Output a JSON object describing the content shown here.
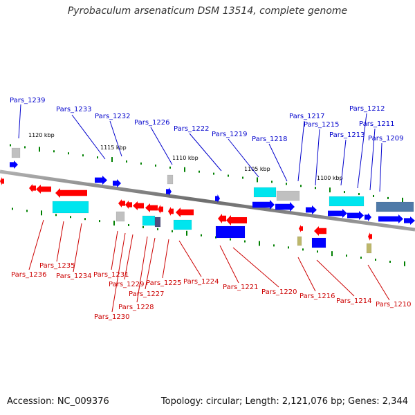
{
  "header": {
    "title": "Pyrobaculum arsenaticum DSM 13514, complete genome"
  },
  "footer": {
    "accession": "Accession: NC_009376",
    "topology": "Topology: circular; Length: 2,121,076 bp; Genes: 2,344"
  },
  "scale_labels": [
    "1120 kbp",
    "1115 kbp",
    "1110 kbp",
    "1105 kbp",
    "1100 kbp"
  ],
  "colors": {
    "plus_strand_label": "#0000cc",
    "minus_strand_label": "#cc0000",
    "red": "#ff0000",
    "blue": "#0000ff",
    "cyan": "#00e5ee",
    "grey": "#c0c0c0",
    "tan": "#bdb76b",
    "backbone": "#808080",
    "tick": "#008000"
  },
  "genes_top": [
    "Pars_1239",
    "Pars_1233",
    "Pars_1232",
    "Pars_1226",
    "Pars_1222",
    "Pars_1219",
    "Pars_1218",
    "Pars_1217",
    "Pars_1215",
    "Pars_1213",
    "Pars_1212",
    "Pars_1211",
    "Pars_1209"
  ],
  "genes_bottom": [
    "Pars_1236",
    "Pars_1235",
    "Pars_1234",
    "Pars_1231",
    "Pars_1230",
    "Pars_1229",
    "Pars_1228",
    "Pars_1227",
    "Pars_1225",
    "Pars_1224",
    "Pars_1221",
    "Pars_1220",
    "Pars_1216",
    "Pars_1214",
    "Pars_1210"
  ]
}
